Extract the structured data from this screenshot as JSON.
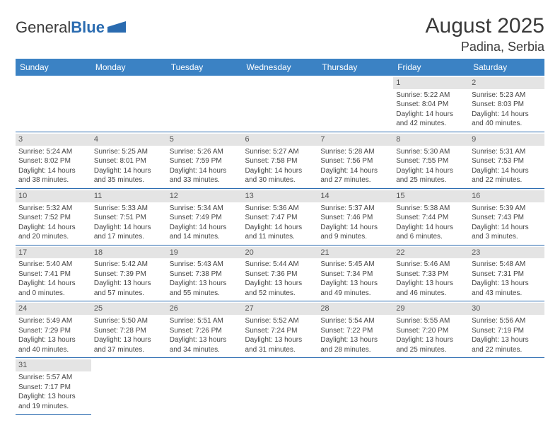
{
  "logo": {
    "text1": "General",
    "text2": "Blue"
  },
  "header": {
    "title": "August 2025",
    "location": "Padina, Serbia"
  },
  "colors": {
    "header_bg": "#3b82c4",
    "header_text": "#ffffff",
    "daynum_bg": "#e4e4e4",
    "cell_border": "#2a6bb0",
    "logo_blue": "#2a6bb0"
  },
  "day_headers": [
    "Sunday",
    "Monday",
    "Tuesday",
    "Wednesday",
    "Thursday",
    "Friday",
    "Saturday"
  ],
  "weeks": [
    [
      null,
      null,
      null,
      null,
      null,
      {
        "n": "1",
        "sr": "Sunrise: 5:22 AM",
        "ss": "Sunset: 8:04 PM",
        "dl": "Daylight: 14 hours and 42 minutes."
      },
      {
        "n": "2",
        "sr": "Sunrise: 5:23 AM",
        "ss": "Sunset: 8:03 PM",
        "dl": "Daylight: 14 hours and 40 minutes."
      }
    ],
    [
      {
        "n": "3",
        "sr": "Sunrise: 5:24 AM",
        "ss": "Sunset: 8:02 PM",
        "dl": "Daylight: 14 hours and 38 minutes."
      },
      {
        "n": "4",
        "sr": "Sunrise: 5:25 AM",
        "ss": "Sunset: 8:01 PM",
        "dl": "Daylight: 14 hours and 35 minutes."
      },
      {
        "n": "5",
        "sr": "Sunrise: 5:26 AM",
        "ss": "Sunset: 7:59 PM",
        "dl": "Daylight: 14 hours and 33 minutes."
      },
      {
        "n": "6",
        "sr": "Sunrise: 5:27 AM",
        "ss": "Sunset: 7:58 PM",
        "dl": "Daylight: 14 hours and 30 minutes."
      },
      {
        "n": "7",
        "sr": "Sunrise: 5:28 AM",
        "ss": "Sunset: 7:56 PM",
        "dl": "Daylight: 14 hours and 27 minutes."
      },
      {
        "n": "8",
        "sr": "Sunrise: 5:30 AM",
        "ss": "Sunset: 7:55 PM",
        "dl": "Daylight: 14 hours and 25 minutes."
      },
      {
        "n": "9",
        "sr": "Sunrise: 5:31 AM",
        "ss": "Sunset: 7:53 PM",
        "dl": "Daylight: 14 hours and 22 minutes."
      }
    ],
    [
      {
        "n": "10",
        "sr": "Sunrise: 5:32 AM",
        "ss": "Sunset: 7:52 PM",
        "dl": "Daylight: 14 hours and 20 minutes."
      },
      {
        "n": "11",
        "sr": "Sunrise: 5:33 AM",
        "ss": "Sunset: 7:51 PM",
        "dl": "Daylight: 14 hours and 17 minutes."
      },
      {
        "n": "12",
        "sr": "Sunrise: 5:34 AM",
        "ss": "Sunset: 7:49 PM",
        "dl": "Daylight: 14 hours and 14 minutes."
      },
      {
        "n": "13",
        "sr": "Sunrise: 5:36 AM",
        "ss": "Sunset: 7:47 PM",
        "dl": "Daylight: 14 hours and 11 minutes."
      },
      {
        "n": "14",
        "sr": "Sunrise: 5:37 AM",
        "ss": "Sunset: 7:46 PM",
        "dl": "Daylight: 14 hours and 9 minutes."
      },
      {
        "n": "15",
        "sr": "Sunrise: 5:38 AM",
        "ss": "Sunset: 7:44 PM",
        "dl": "Daylight: 14 hours and 6 minutes."
      },
      {
        "n": "16",
        "sr": "Sunrise: 5:39 AM",
        "ss": "Sunset: 7:43 PM",
        "dl": "Daylight: 14 hours and 3 minutes."
      }
    ],
    [
      {
        "n": "17",
        "sr": "Sunrise: 5:40 AM",
        "ss": "Sunset: 7:41 PM",
        "dl": "Daylight: 14 hours and 0 minutes."
      },
      {
        "n": "18",
        "sr": "Sunrise: 5:42 AM",
        "ss": "Sunset: 7:39 PM",
        "dl": "Daylight: 13 hours and 57 minutes."
      },
      {
        "n": "19",
        "sr": "Sunrise: 5:43 AM",
        "ss": "Sunset: 7:38 PM",
        "dl": "Daylight: 13 hours and 55 minutes."
      },
      {
        "n": "20",
        "sr": "Sunrise: 5:44 AM",
        "ss": "Sunset: 7:36 PM",
        "dl": "Daylight: 13 hours and 52 minutes."
      },
      {
        "n": "21",
        "sr": "Sunrise: 5:45 AM",
        "ss": "Sunset: 7:34 PM",
        "dl": "Daylight: 13 hours and 49 minutes."
      },
      {
        "n": "22",
        "sr": "Sunrise: 5:46 AM",
        "ss": "Sunset: 7:33 PM",
        "dl": "Daylight: 13 hours and 46 minutes."
      },
      {
        "n": "23",
        "sr": "Sunrise: 5:48 AM",
        "ss": "Sunset: 7:31 PM",
        "dl": "Daylight: 13 hours and 43 minutes."
      }
    ],
    [
      {
        "n": "24",
        "sr": "Sunrise: 5:49 AM",
        "ss": "Sunset: 7:29 PM",
        "dl": "Daylight: 13 hours and 40 minutes."
      },
      {
        "n": "25",
        "sr": "Sunrise: 5:50 AM",
        "ss": "Sunset: 7:28 PM",
        "dl": "Daylight: 13 hours and 37 minutes."
      },
      {
        "n": "26",
        "sr": "Sunrise: 5:51 AM",
        "ss": "Sunset: 7:26 PM",
        "dl": "Daylight: 13 hours and 34 minutes."
      },
      {
        "n": "27",
        "sr": "Sunrise: 5:52 AM",
        "ss": "Sunset: 7:24 PM",
        "dl": "Daylight: 13 hours and 31 minutes."
      },
      {
        "n": "28",
        "sr": "Sunrise: 5:54 AM",
        "ss": "Sunset: 7:22 PM",
        "dl": "Daylight: 13 hours and 28 minutes."
      },
      {
        "n": "29",
        "sr": "Sunrise: 5:55 AM",
        "ss": "Sunset: 7:20 PM",
        "dl": "Daylight: 13 hours and 25 minutes."
      },
      {
        "n": "30",
        "sr": "Sunrise: 5:56 AM",
        "ss": "Sunset: 7:19 PM",
        "dl": "Daylight: 13 hours and 22 minutes."
      }
    ],
    [
      {
        "n": "31",
        "sr": "Sunrise: 5:57 AM",
        "ss": "Sunset: 7:17 PM",
        "dl": "Daylight: 13 hours and 19 minutes."
      },
      null,
      null,
      null,
      null,
      null,
      null
    ]
  ]
}
